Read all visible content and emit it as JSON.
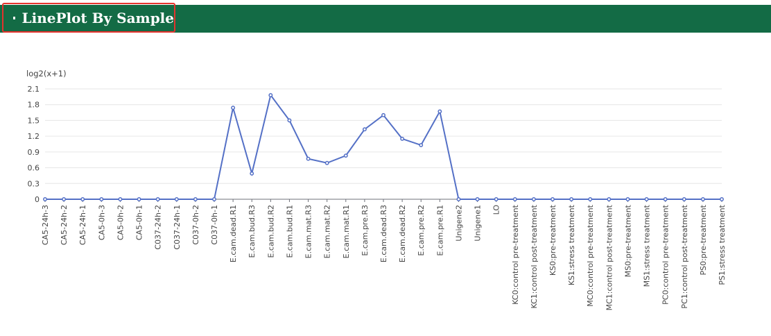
{
  "panel": {
    "title": "LinePlot By Sample"
  },
  "colors": {
    "header": "#136b45",
    "highlight": "#e5322d",
    "line": "#5470c6",
    "grid": "#e6e6e6"
  },
  "chart_data": {
    "type": "line",
    "ylabel": "log2(x+1)",
    "ylim": [
      0,
      2.1
    ],
    "yticks": [
      "0",
      "0.3",
      "0.6",
      "0.9",
      "1.2",
      "1.5",
      "1.8",
      "2.1"
    ],
    "grid": "horizontal",
    "categories": [
      "CA5-24h-3",
      "CA5-24h-2",
      "CA5-24h-1",
      "CA5-0h-3",
      "CA5-0h-2",
      "CA5-0h-1",
      "C037-24h-2",
      "C037-24h-1",
      "C037-0h-2",
      "C037-0h-1",
      "E.cam.dead.R1",
      "E.cam.bud.R3",
      "E.cam.bud.R2",
      "E.cam.bud.R1",
      "E.cam.mat.R3",
      "E.cam.mat.R2",
      "E.cam.mat.R1",
      "E.cam.pre.R3",
      "E.cam.dead.R3",
      "E.cam.dead.R2",
      "E.cam.pre.R2",
      "E.cam.pre.R1",
      "Unigene2",
      "Unigene1",
      "LO",
      "KC0:control pre-treatment",
      "KC1:control post-treatment",
      "KS0:pre-treatment",
      "KS1:stress treatment",
      "MC0:control pre-treatment",
      "MC1:control post-treatment",
      "MS0:pre-treatment",
      "MS1:stress treatment",
      "PC0:control pre-treatment",
      "PC1:control post-treatment",
      "PS0:pre-treatment",
      "PS1:stress treatment"
    ],
    "values": [
      0,
      0,
      0,
      0,
      0,
      0,
      0,
      0,
      0,
      0,
      1.74,
      0.49,
      1.98,
      1.5,
      0.77,
      0.69,
      0.83,
      1.33,
      1.6,
      1.15,
      1.03,
      1.67,
      0,
      0,
      0,
      0,
      0,
      0,
      0,
      0,
      0,
      0,
      0,
      0,
      0,
      0,
      0
    ]
  }
}
